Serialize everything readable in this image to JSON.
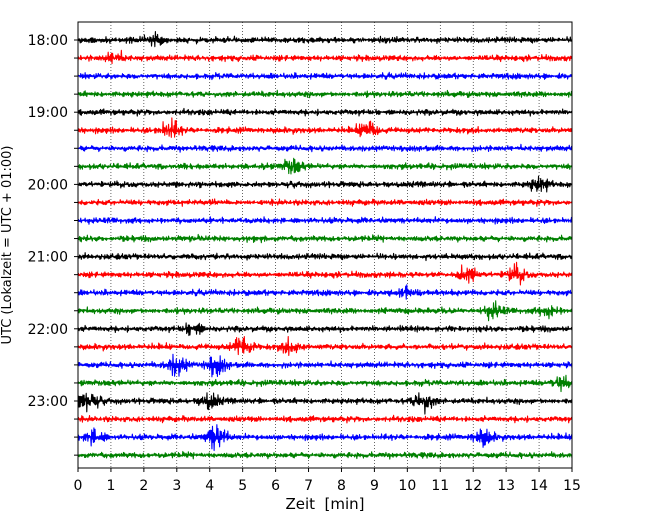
{
  "chart_data": {
    "type": "line",
    "subtype": "helicorder",
    "title": "",
    "xlabel": "Zeit  [min]",
    "ylabel": "UTC (Lokalzeit = UTC + 01:00)",
    "xlim": [
      0,
      15
    ],
    "x_ticks": [
      "0",
      "1",
      "2",
      "3",
      "4",
      "5",
      "6",
      "7",
      "8",
      "9",
      "10",
      "11",
      "12",
      "13",
      "14",
      "15"
    ],
    "y_tick_labels": [
      "18:00",
      "19:00",
      "20:00",
      "21:00",
      "22:00",
      "23:00"
    ],
    "trace_interval_min": 15,
    "trace_start": "18:00",
    "trace_count": 24,
    "vertical_grid": "dotted",
    "color_cycle": [
      "#000000",
      "#ff0000",
      "#0000ff",
      "#008000"
    ],
    "events": [
      {
        "trace_start": "18:00",
        "minute": 2.3,
        "amplitude": 1.5
      },
      {
        "trace_start": "18:15",
        "minute": 1.1,
        "amplitude": 1.4
      },
      {
        "trace_start": "19:15",
        "minute": 2.8,
        "amplitude": 2.2
      },
      {
        "trace_start": "19:15",
        "minute": 8.8,
        "amplitude": 2.4
      },
      {
        "trace_start": "19:45",
        "minute": 6.5,
        "amplitude": 1.8
      },
      {
        "trace_start": "20:00",
        "minute": 14.0,
        "amplitude": 1.8
      },
      {
        "trace_start": "21:15",
        "minute": 11.8,
        "amplitude": 2.2
      },
      {
        "trace_start": "21:15",
        "minute": 13.3,
        "amplitude": 2.0
      },
      {
        "trace_start": "21:30",
        "minute": 10.0,
        "amplitude": 1.6
      },
      {
        "trace_start": "21:45",
        "minute": 12.6,
        "amplitude": 1.8
      },
      {
        "trace_start": "21:45",
        "minute": 14.3,
        "amplitude": 1.6
      },
      {
        "trace_start": "22:00",
        "minute": 3.5,
        "amplitude": 1.6
      },
      {
        "trace_start": "22:15",
        "minute": 5.0,
        "amplitude": 2.8
      },
      {
        "trace_start": "22:15",
        "minute": 6.5,
        "amplitude": 1.8
      },
      {
        "trace_start": "22:30",
        "minute": 3.0,
        "amplitude": 2.8
      },
      {
        "trace_start": "22:30",
        "minute": 4.2,
        "amplitude": 2.5
      },
      {
        "trace_start": "22:45",
        "minute": 14.7,
        "amplitude": 1.8
      },
      {
        "trace_start": "23:00",
        "minute": 0.3,
        "amplitude": 2.8
      },
      {
        "trace_start": "23:00",
        "minute": 4.0,
        "amplitude": 2.0
      },
      {
        "trace_start": "23:00",
        "minute": 10.5,
        "amplitude": 2.8
      },
      {
        "trace_start": "23:30",
        "minute": 0.5,
        "amplitude": 2.0
      },
      {
        "trace_start": "23:30",
        "minute": 4.2,
        "amplitude": 3.6
      },
      {
        "trace_start": "23:30",
        "minute": 12.3,
        "amplitude": 2.2
      }
    ]
  }
}
